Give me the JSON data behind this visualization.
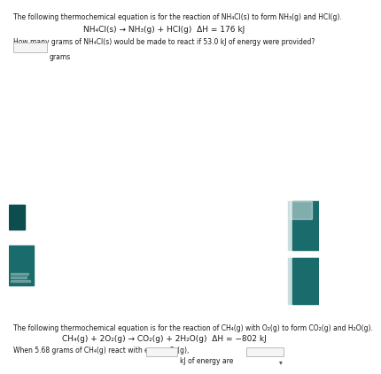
{
  "bg_color": "#ffffff",
  "text_color": "#1a1a1a",
  "title1": "The following thermochemical equation is for the reaction of NH₄Cl(s) to form NH₃(g) and HCl(g).",
  "eq1": "NH₄Cl(s) → NH₃(g) + HCl(g)  ΔH = 176 kJ",
  "question1": "How many grams of NH₄Cl(s) would be made to react if 53.0 kJ of energy were provided?",
  "answer_label1": "grams",
  "title2": "The following thermochemical equation is for the reaction of CH₄(g) with O₂(g) to form CO₂(g) and H₂O(g).",
  "eq2": "CH₄(g) + 2O₂(g) → CO₂(g) + 2H₂O(g)  ΔH = −802 kJ",
  "question2": "When 5.68 grams of CH₄(g) react with excess O₂(g),",
  "answer_suffix2": "kJ of energy are",
  "font_size_title": 5.5,
  "font_size_eq": 6.5,
  "font_size_q": 5.5,
  "teal_color": "#1a6b6b",
  "teal_dark": "#0d4d4d",
  "gray_color": "#aaaaaa",
  "light_teal": "#c8dede"
}
